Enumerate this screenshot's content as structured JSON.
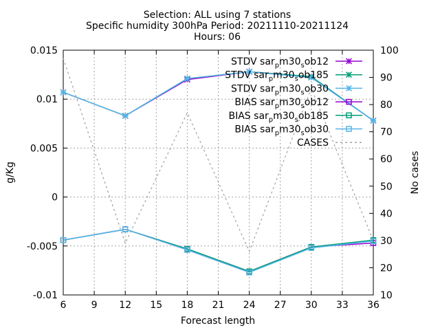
{
  "chart_data": {
    "type": "line",
    "title_lines": [
      "Selection: ALL using     7 stations",
      "Specific humidity 300hPa   Period: 20211110-20211124",
      "Hours: 06"
    ],
    "xlabel": "Forecast length",
    "ylabel": "g/Kg",
    "y2label": "No cases",
    "xlim": [
      6,
      36
    ],
    "ylim": [
      -0.01,
      0.015
    ],
    "y2lim": [
      10,
      100
    ],
    "xticks": [
      "6",
      "9",
      "12",
      "15",
      "18",
      "21",
      "24",
      "27",
      "30",
      "33",
      "36"
    ],
    "yticks": [
      "-0.01",
      "-0.005",
      "0",
      "0.005",
      "0.01",
      "0.015"
    ],
    "y2ticks": [
      "10",
      "20",
      "30",
      "40",
      "50",
      "60",
      "70",
      "80",
      "90",
      "100"
    ],
    "grid": true,
    "legend_position": "top-right",
    "x": [
      6,
      12,
      18,
      24,
      30,
      36
    ],
    "series": [
      {
        "name": "STDV sar_pm30_sob12",
        "label_main": "STDV sar",
        "label_sub1": "p",
        "label_mid": "m30",
        "label_sub2": "s",
        "label_end": "ob12",
        "axis": "y1",
        "color": "#9400d3",
        "marker": "star",
        "dash": "",
        "values": [
          0.0107,
          0.0083,
          0.012,
          0.0128,
          0.0123,
          0.0078
        ]
      },
      {
        "name": "STDV sar_pm30_sob185",
        "label_main": "STDV sar",
        "label_sub1": "p",
        "label_mid": "m30",
        "label_sub2": "s",
        "label_end": "ob185",
        "axis": "y1",
        "color": "#009e73",
        "marker": "star",
        "dash": "",
        "values": [
          0.0107,
          0.0083,
          0.0121,
          0.0128,
          0.0123,
          0.0078
        ]
      },
      {
        "name": "STDV sar_pm30_sob30",
        "label_main": "STDV sar",
        "label_sub1": "p",
        "label_mid": "m30",
        "label_sub2": "s",
        "label_end": "ob30",
        "axis": "y1",
        "color": "#56b4e9",
        "marker": "star",
        "dash": "",
        "values": [
          0.0107,
          0.0083,
          0.0121,
          0.0128,
          0.0122,
          0.0078
        ]
      },
      {
        "name": "BIAS sar_pm30_sob12",
        "label_main": "BIAS sar",
        "label_sub1": "p",
        "label_mid": "m30",
        "label_sub2": "s",
        "label_end": "ob12",
        "axis": "y1",
        "color": "#9400d3",
        "marker": "square",
        "dash": "",
        "values": [
          -0.0044,
          -0.0033,
          -0.0053,
          -0.0076,
          -0.0051,
          -0.0047
        ]
      },
      {
        "name": "BIAS sar_pm30_sob185",
        "label_main": "BIAS sar",
        "label_sub1": "p",
        "label_mid": "m30",
        "label_sub2": "s",
        "label_end": "ob185",
        "axis": "y1",
        "color": "#009e73",
        "marker": "square",
        "dash": "",
        "values": [
          -0.0044,
          -0.0033,
          -0.0053,
          -0.0076,
          -0.0051,
          -0.0044
        ]
      },
      {
        "name": "BIAS sar_pm30_sob30",
        "label_main": "BIAS sar",
        "label_sub1": "p",
        "label_mid": "m30",
        "label_sub2": "s",
        "label_end": "ob30",
        "axis": "y1",
        "color": "#56b4e9",
        "marker": "square",
        "dash": "",
        "values": [
          -0.0044,
          -0.0033,
          -0.0054,
          -0.0077,
          -0.0052,
          -0.0045
        ]
      },
      {
        "name": "CASES",
        "label_main": "CASES",
        "label_sub1": "",
        "label_mid": "",
        "label_sub2": "",
        "label_end": "",
        "axis": "y2",
        "color": "#a0a0a0",
        "marker": "none",
        "dash": "3,4",
        "values": [
          97,
          29,
          77,
          26,
          86,
          30
        ]
      }
    ]
  }
}
